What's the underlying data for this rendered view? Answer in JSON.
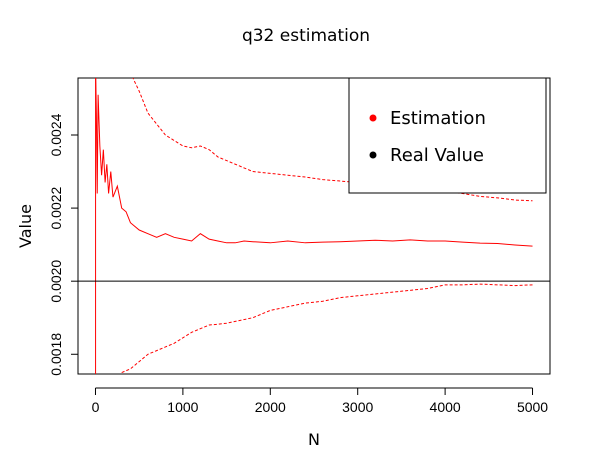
{
  "chart_data": {
    "type": "line",
    "title": "q32 estimation",
    "xlabel": "N",
    "ylabel": "Value",
    "xlim": [
      -200,
      5200
    ],
    "ylim": [
      0.001746,
      0.002556
    ],
    "x_ticks": [
      0,
      1000,
      2000,
      3000,
      4000,
      5000
    ],
    "x_tick_labels": [
      "0",
      "1000",
      "2000",
      "3000",
      "4000",
      "5000"
    ],
    "y_ticks": [
      0.0018,
      0.002,
      0.0022,
      0.0024
    ],
    "y_tick_labels": [
      "0.0018",
      "0.0020",
      "0.0022",
      "0.0024"
    ],
    "grid": false,
    "legend_position": "top-right",
    "legend": [
      {
        "label": "Estimation",
        "color": "#ff0000"
      },
      {
        "label": "Real Value",
        "color": "#000000"
      }
    ],
    "real_value": 0.002,
    "series": [
      {
        "name": "Estimation",
        "style": "solid",
        "color": "#ff0000",
        "x": [
          1,
          10,
          20,
          30,
          50,
          70,
          90,
          110,
          130,
          150,
          175,
          200,
          250,
          300,
          350,
          400,
          450,
          500,
          600,
          700,
          800,
          900,
          1000,
          1100,
          1200,
          1300,
          1400,
          1500,
          1600,
          1700,
          1800,
          2000,
          2200,
          2400,
          2600,
          2800,
          3000,
          3200,
          3400,
          3600,
          3800,
          4000,
          4200,
          4400,
          4600,
          4800,
          5000
        ],
        "y": [
          0.00259,
          0.00246,
          0.00224,
          0.00251,
          0.00237,
          0.00229,
          0.00236,
          0.00227,
          0.00232,
          0.00224,
          0.0023,
          0.00223,
          0.00226,
          0.0022,
          0.00219,
          0.00216,
          0.00215,
          0.00214,
          0.00213,
          0.00212,
          0.00213,
          0.00212,
          0.002115,
          0.00211,
          0.00213,
          0.002115,
          0.00211,
          0.002105,
          0.002105,
          0.00211,
          0.002108,
          0.002105,
          0.00211,
          0.002105,
          0.002107,
          0.002108,
          0.00211,
          0.002112,
          0.00211,
          0.002113,
          0.00211,
          0.00211,
          0.002107,
          0.002104,
          0.002103,
          0.002099,
          0.002096
        ]
      },
      {
        "name": "",
        "style": "dashed",
        "color": "#ff0000",
        "x": [
          420,
          500,
          600,
          700,
          800,
          900,
          1000,
          1100,
          1200,
          1300,
          1400,
          1500,
          1600,
          1700,
          1800,
          2000,
          2200,
          2400,
          2600,
          2800,
          3000,
          3200,
          3400,
          3600,
          3800,
          4000,
          4200,
          4400,
          4600,
          4800,
          5000
        ],
        "y": [
          0.00256,
          0.00252,
          0.00246,
          0.00243,
          0.0024,
          0.002385,
          0.00237,
          0.002365,
          0.00237,
          0.00236,
          0.00234,
          0.00233,
          0.00232,
          0.00231,
          0.0023,
          0.002295,
          0.00229,
          0.002285,
          0.002278,
          0.002274,
          0.00227,
          0.002268,
          0.002265,
          0.00226,
          0.002255,
          0.002245,
          0.00224,
          0.002232,
          0.002228,
          0.002222,
          0.00222
        ]
      },
      {
        "name": "",
        "style": "dashed",
        "color": "#ff0000",
        "x": [
          300,
          400,
          500,
          600,
          700,
          800,
          900,
          1000,
          1100,
          1200,
          1300,
          1400,
          1500,
          1600,
          1800,
          2000,
          2200,
          2400,
          2600,
          2800,
          3000,
          3200,
          3400,
          3600,
          3800,
          4000,
          4200,
          4400,
          4600,
          4800,
          5000
        ],
        "y": [
          0.00175,
          0.00176,
          0.00178,
          0.0018,
          0.00181,
          0.00182,
          0.00183,
          0.001845,
          0.00186,
          0.00187,
          0.00188,
          0.001882,
          0.001885,
          0.00189,
          0.0019,
          0.00192,
          0.00193,
          0.00194,
          0.001945,
          0.001955,
          0.00196,
          0.001965,
          0.00197,
          0.001975,
          0.00198,
          0.00199,
          0.00199,
          0.001992,
          0.00199,
          0.001988,
          0.00199
        ]
      }
    ]
  }
}
